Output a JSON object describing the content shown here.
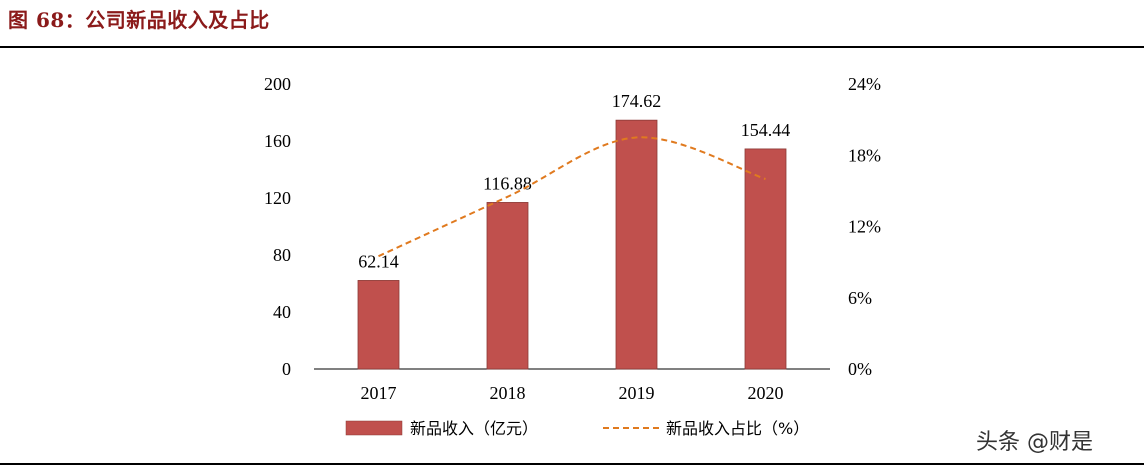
{
  "figure": {
    "title": "图 68：公司新品收入及占比"
  },
  "chart_data": {
    "type": "bar",
    "categories": [
      "2017",
      "2018",
      "2019",
      "2020"
    ],
    "series": [
      {
        "name": "新品收入（亿元）",
        "type": "bar",
        "axis": "left",
        "color": "#c0504d",
        "values": [
          62.14,
          116.88,
          174.62,
          154.44
        ],
        "data_labels": [
          "62.14",
          "116.88",
          "174.62",
          "154.44"
        ]
      },
      {
        "name": "新品收入占比（%）",
        "type": "line",
        "style": "dashed",
        "axis": "right",
        "color": "#e07a1f",
        "values": [
          9.5,
          14.5,
          19.5,
          16.0
        ]
      }
    ],
    "y_left": {
      "ticks": [
        "0",
        "40",
        "80",
        "120",
        "160",
        "200"
      ],
      "range": [
        0,
        200
      ]
    },
    "y_right": {
      "ticks": [
        "0%",
        "6%",
        "12%",
        "18%",
        "24%"
      ],
      "range": [
        0,
        24
      ]
    },
    "legend_position": "bottom",
    "grid": false
  },
  "watermark": {
    "text": "头条 @财是"
  }
}
